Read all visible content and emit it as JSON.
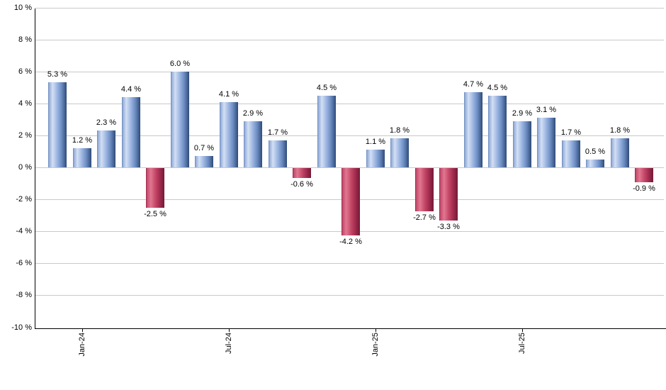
{
  "chart_data": {
    "type": "bar",
    "title": "",
    "description": "Monthly percent returns bar chart, positive months blue, negative months red",
    "values": [
      5.3,
      1.2,
      2.3,
      4.4,
      -2.5,
      6.0,
      0.7,
      4.1,
      2.9,
      1.7,
      -0.6,
      4.5,
      -4.2,
      1.1,
      1.8,
      -2.7,
      -3.3,
      4.7,
      4.5,
      2.9,
      3.1,
      1.7,
      0.5,
      1.8,
      -0.9
    ],
    "bar_labels": [
      "5.3 %",
      "1.2 %",
      "2.3 %",
      "4.4 %",
      "-2.5 %",
      "6.0 %",
      "0.7 %",
      "4.1 %",
      "2.9 %",
      "1.7 %",
      "-0.6 %",
      "4.5 %",
      "-4.2 %",
      "1.1 %",
      "1.8 %",
      "-2.7 %",
      "-3.3 %",
      "4.7 %",
      "4.5 %",
      "2.9 %",
      "3.1 %",
      "1.7 %",
      "0.5 %",
      "1.8 %",
      "-0.9 %"
    ],
    "x_ticks": [
      {
        "bar_index": 1,
        "label": "Jan-24"
      },
      {
        "bar_index": 7,
        "label": "Jul-24"
      },
      {
        "bar_index": 13,
        "label": "Jan-25"
      },
      {
        "bar_index": 19,
        "label": "Jul-25"
      }
    ],
    "y_ticks": [
      {
        "value": 10,
        "label": "10 %"
      },
      {
        "value": 8,
        "label": "8 %"
      },
      {
        "value": 6,
        "label": "6 %"
      },
      {
        "value": 4,
        "label": "4 %"
      },
      {
        "value": 2,
        "label": "2 %"
      },
      {
        "value": 0,
        "label": "0 %"
      },
      {
        "value": -2,
        "label": "-2 %"
      },
      {
        "value": -4,
        "label": "-4 %"
      },
      {
        "value": -6,
        "label": "-6 %"
      },
      {
        "value": -8,
        "label": "-8 %"
      },
      {
        "value": -10,
        "label": "-10 %"
      }
    ],
    "ylim": [
      -10,
      10
    ],
    "xlabel": "",
    "ylabel": "",
    "grid": "horizontal",
    "legend_position": "none",
    "colors": {
      "positive_bar_highlight": "#d3dff4",
      "positive_bar_dark": "#2f4b78",
      "positive_bar_mid": "#8fabdb",
      "negative_bar_highlight": "#e27691",
      "negative_bar_dark": "#731a37",
      "negative_bar_mid": "#c04363",
      "gridline": "#c9c9c9",
      "axis": "#000000",
      "text": "#000000",
      "background": "#ffffff"
    }
  }
}
